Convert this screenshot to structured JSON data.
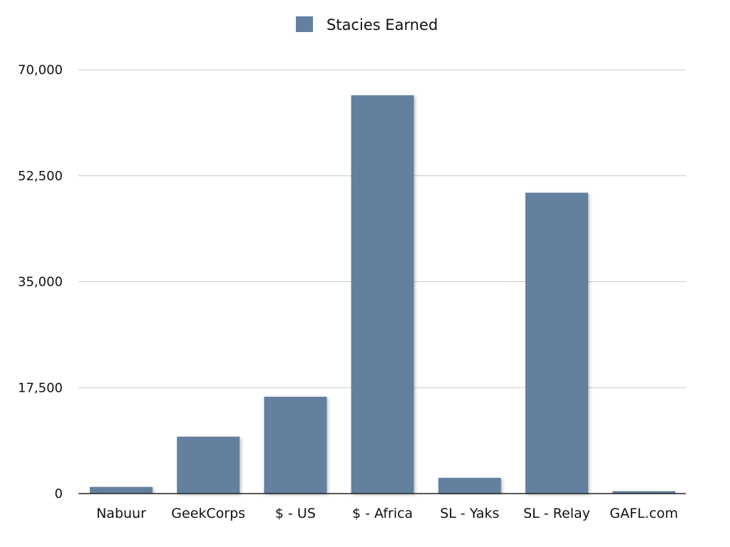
{
  "chart_data": {
    "type": "bar",
    "legend": {
      "position": "top-center",
      "entries": [
        "Stacies Earned"
      ]
    },
    "categories": [
      "Nabuur",
      "GeekCorps",
      "$ - US",
      "$ - Africa",
      "SL - Yaks",
      "SL - Relay",
      "GAFL.com"
    ],
    "series": [
      {
        "name": "Stacies Earned",
        "color": "#64809f",
        "values": [
          1100,
          9400,
          16000,
          65800,
          2600,
          49700,
          400
        ]
      }
    ],
    "ylim": [
      0,
      70000
    ],
    "yticks": [
      0,
      17500,
      35000,
      52500,
      70000
    ],
    "ytick_labels": [
      "0",
      "17,500",
      "35,000",
      "52,500",
      "70,000"
    ],
    "grid": true
  }
}
